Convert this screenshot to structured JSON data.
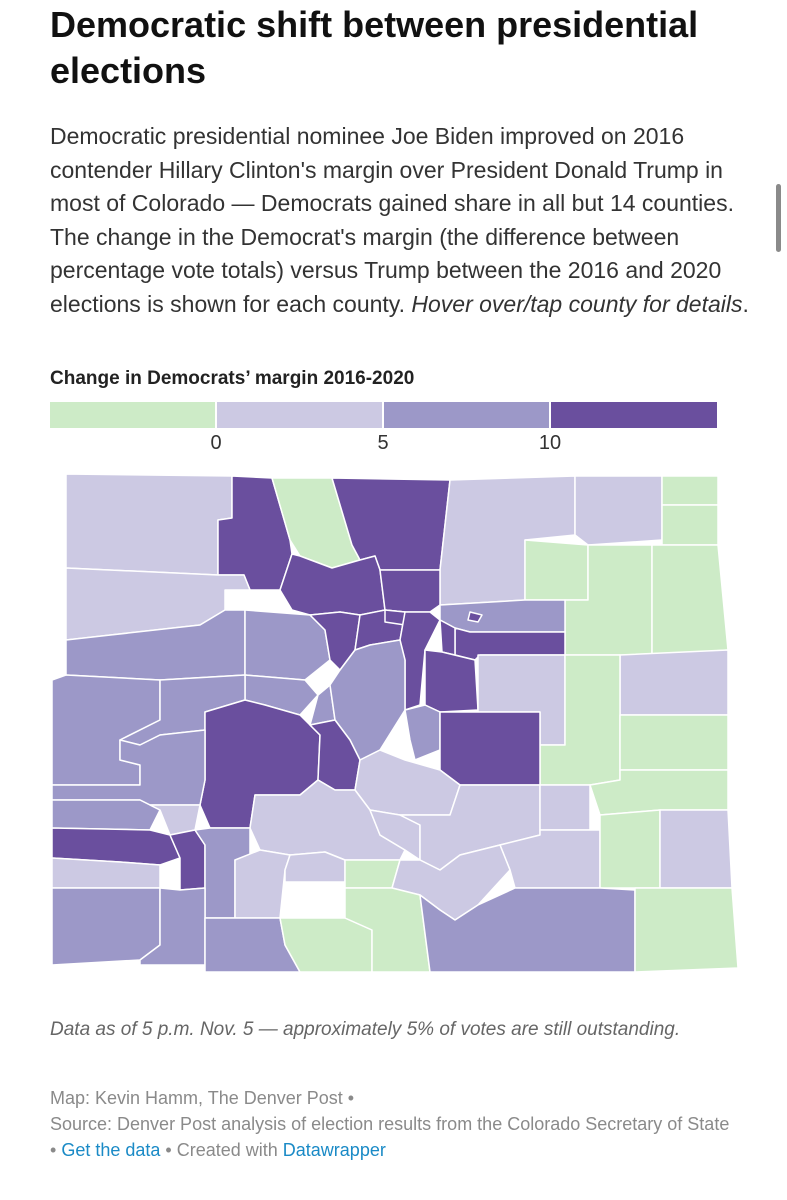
{
  "header": {
    "title": "Democratic shift between presidential elections",
    "description": "Democratic presidential nominee Joe Biden improved on 2016 contender Hillary Clinton's margin over President Donald Trump in most of Colorado — Democrats gained share in all but 14 counties. The change in the Democrat's margin (the difference between percentage vote totals) versus Trump between the 2016 and 2020 elections is shown for each county.",
    "description_italic": "Hover over/tap county for details",
    "description_end": "."
  },
  "legend": {
    "title": "Change in Democrats’ margin 2016-2020",
    "ticks": [
      "0",
      "5",
      "10"
    ],
    "colors": [
      "#cdebc7",
      "#ccc9e3",
      "#9c98c8",
      "#6a4f9e"
    ]
  },
  "map": {
    "stroke_color": "#ffffff"
  },
  "footer": {
    "note": "Data as of 5 p.m. Nov. 5 — approximately 5% of votes are still outstanding.",
    "credit_map": "Map: Kevin Hamm, The Denver Post",
    "credit_source": "Source: Denver Post analysis of election results from the Colorado Secretary of State",
    "get_data": "Get the data",
    "created_with": "Created with",
    "datawrapper": "Datawrapper"
  }
}
